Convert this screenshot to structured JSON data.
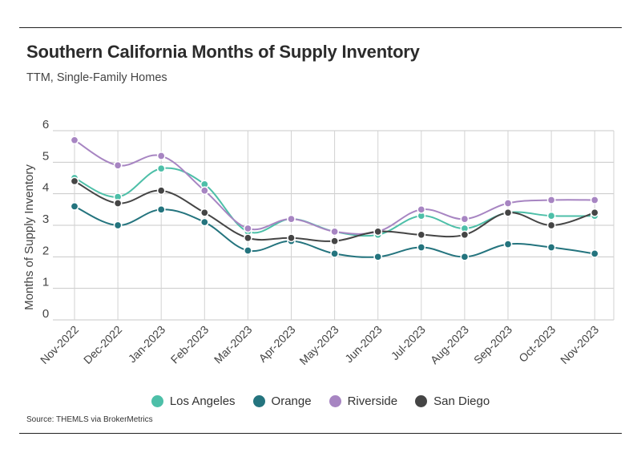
{
  "header": {
    "title": "Southern California Months of Supply Inventory",
    "subtitle": "TTM, Single-Family Homes"
  },
  "footer": {
    "source": "Source:  THEMLS via BrokerMetrics"
  },
  "chart_data": {
    "type": "line",
    "title": "Southern California Months of Supply Inventory",
    "subtitle": "TTM, Single-Family Homes",
    "xlabel": "",
    "ylabel": "Months of Supply Inventory",
    "ylim": [
      0,
      6
    ],
    "yticks": [
      "0",
      "1",
      "2",
      "3",
      "4",
      "5",
      "6"
    ],
    "grid": true,
    "legend_position": "bottom",
    "categories": [
      "Nov-2022",
      "Dec-2022",
      "Jan-2023",
      "Feb-2023",
      "Mar-2023",
      "Apr-2023",
      "May-2023",
      "Jun-2023",
      "Jul-2023",
      "Aug-2023",
      "Sep-2023",
      "Oct-2023",
      "Nov-2023"
    ],
    "series": [
      {
        "name": "Los Angeles",
        "color": "#4dbfa8",
        "values": [
          4.5,
          3.9,
          4.8,
          4.3,
          2.8,
          3.2,
          2.8,
          2.7,
          3.3,
          2.9,
          3.4,
          3.3,
          3.3
        ]
      },
      {
        "name": "Orange",
        "color": "#24747e",
        "values": [
          3.6,
          3.0,
          3.5,
          3.1,
          2.2,
          2.5,
          2.1,
          2.0,
          2.3,
          2.0,
          2.4,
          2.3,
          2.1
        ]
      },
      {
        "name": "Riverside",
        "color": "#a785c2",
        "values": [
          5.7,
          4.9,
          5.2,
          4.1,
          2.9,
          3.2,
          2.8,
          2.8,
          3.5,
          3.2,
          3.7,
          3.8,
          3.8
        ]
      },
      {
        "name": "San Diego",
        "color": "#454545",
        "values": [
          4.4,
          3.7,
          4.1,
          3.4,
          2.6,
          2.6,
          2.5,
          2.8,
          2.7,
          2.7,
          3.4,
          3.0,
          3.4
        ]
      }
    ]
  }
}
